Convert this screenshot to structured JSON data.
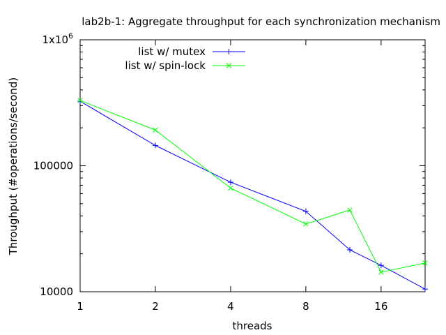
{
  "chart_data": {
    "type": "line",
    "title": "lab2b-1: Aggregate throughput for each synchronization mechanism",
    "xlabel": "threads",
    "ylabel": "Throughput (#operations/second)",
    "x_scale": "log2",
    "y_scale": "log10",
    "xlim": [
      1,
      24
    ],
    "ylim": [
      10000,
      1000000
    ],
    "xticks": [
      1,
      2,
      4,
      8,
      16
    ],
    "xtick_labels": [
      "1",
      "2",
      "4",
      "8",
      "16"
    ],
    "yticks": [
      10000,
      100000,
      1000000
    ],
    "ytick_labels": [
      "10000",
      "100000",
      "1x10"
    ],
    "ytick_superscript": "6",
    "grid": false,
    "legend_position": "top-left",
    "series": [
      {
        "name": "list w/ mutex",
        "color": "#0000ff",
        "marker": "plus",
        "x": [
          1,
          2,
          4,
          8,
          12,
          16,
          24
        ],
        "y": [
          325000,
          145000,
          74000,
          43500,
          21500,
          16200,
          10500
        ]
      },
      {
        "name": "list w/ spin-lock",
        "color": "#00ff00",
        "marker": "cross",
        "x": [
          1,
          2,
          4,
          8,
          12,
          16,
          24
        ],
        "y": [
          330000,
          192000,
          66500,
          34500,
          44500,
          14300,
          16900
        ]
      }
    ]
  }
}
